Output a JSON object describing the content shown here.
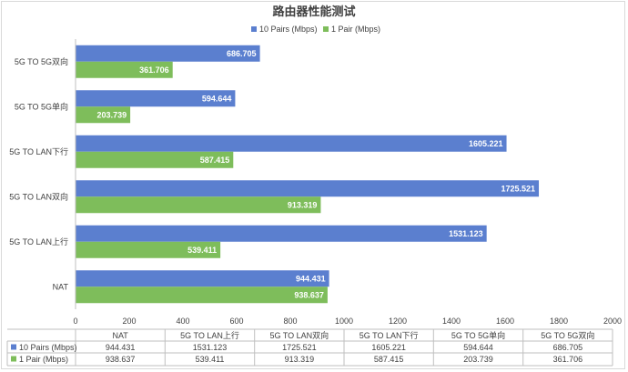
{
  "chart_data": {
    "type": "bar",
    "orientation": "horizontal",
    "title": "路由器性能测试",
    "categories": [
      "5G TO 5G双向",
      "5G TO 5G单向",
      "5G TO LAN下行",
      "5G TO LAN双向",
      "5G TO LAN上行",
      "NAT"
    ],
    "series": [
      {
        "name": "10  Pairs  (Mbps)",
        "color": "#5b7fcf",
        "values": [
          686.705,
          594.644,
          1605.221,
          1725.521,
          1531.123,
          944.431
        ],
        "labels": [
          "686.705",
          "594.644",
          "1605.221",
          "1725.521",
          "1531.123",
          "944.431"
        ]
      },
      {
        "name": "1 Pair (Mbps)",
        "color": "#7ebd5b",
        "values": [
          361.706,
          203.739,
          587.415,
          913.319,
          539.411,
          938.637
        ],
        "labels": [
          "361.706",
          "203.739",
          "587.415",
          "913.319",
          "539.411",
          "938.637"
        ]
      }
    ],
    "xlim": [
      0,
      2000
    ],
    "xticks": [
      "0",
      "200",
      "400",
      "600",
      "800",
      "1000",
      "1200",
      "1400",
      "1600",
      "1800",
      "2000"
    ],
    "legend_position": "top",
    "data_table": {
      "columns": [
        "NAT",
        "5G TO LAN上行",
        "5G TO LAN双向",
        "5G TO LAN下行",
        "5G TO 5G单向",
        "5G TO 5G双向"
      ],
      "rows": [
        {
          "series": "10  Pairs  (Mbps)",
          "cells": [
            "944.431",
            "1531.123",
            "1725.521",
            "1605.221",
            "594.644",
            "686.705"
          ]
        },
        {
          "series": "1 Pair (Mbps)",
          "cells": [
            "938.637",
            "539.411",
            "913.319",
            "587.415",
            "203.739",
            "361.706"
          ]
        }
      ]
    }
  }
}
